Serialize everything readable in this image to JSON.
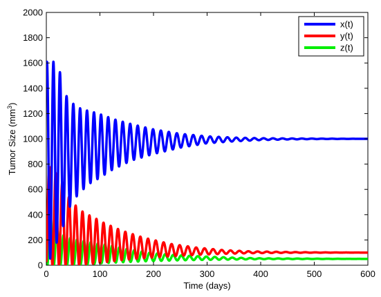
{
  "chart_data": {
    "type": "line",
    "title": "",
    "xlabel": "Time (days)",
    "ylabel": "Tumor Size (mm",
    "ylabel_sup": "3",
    "ylabel_close": ")",
    "xlim": [
      0,
      600
    ],
    "ylim": [
      0,
      2000
    ],
    "xticks": [
      0,
      100,
      200,
      300,
      400,
      500,
      600
    ],
    "yticks": [
      0,
      200,
      400,
      600,
      800,
      1000,
      1200,
      1400,
      1600,
      1800,
      2000
    ],
    "grid": false,
    "legend": "top-right",
    "series": [
      {
        "name": "x(t)",
        "color": "#0000ff",
        "peaks": [
          [
            20,
            1610
          ],
          [
            38,
            1335
          ],
          [
            55,
            1255
          ],
          [
            70,
            1230
          ],
          [
            85,
            1215
          ],
          [
            100,
            1195
          ],
          [
            130,
            1150
          ],
          [
            160,
            1115
          ],
          [
            200,
            1075
          ],
          [
            250,
            1040
          ],
          [
            300,
            1020
          ],
          [
            350,
            1010
          ],
          [
            400,
            1005
          ],
          [
            450,
            1003
          ],
          [
            500,
            1002
          ],
          [
            600,
            1000
          ]
        ],
        "troughs": [
          [
            5,
            30
          ],
          [
            30,
            290
          ],
          [
            47,
            500
          ],
          [
            62,
            570
          ],
          [
            78,
            640
          ],
          [
            95,
            680
          ],
          [
            125,
            760
          ],
          [
            160,
            830
          ],
          [
            200,
            880
          ],
          [
            250,
            930
          ],
          [
            300,
            965
          ],
          [
            350,
            980
          ],
          [
            400,
            990
          ],
          [
            450,
            995
          ],
          [
            500,
            998
          ],
          [
            600,
            1000
          ]
        ]
      },
      {
        "name": "y(t)",
        "color": "#ff0000",
        "peaks": [
          [
            0,
            800
          ],
          [
            25,
            700
          ],
          [
            42,
            540
          ],
          [
            57,
            460
          ],
          [
            72,
            410
          ],
          [
            88,
            380
          ],
          [
            105,
            340
          ],
          [
            140,
            275
          ],
          [
            180,
            220
          ],
          [
            230,
            170
          ],
          [
            280,
            140
          ],
          [
            330,
            120
          ],
          [
            380,
            110
          ],
          [
            450,
            105
          ],
          [
            500,
            102
          ],
          [
            600,
            100
          ]
        ],
        "troughs": [
          [
            12,
            0
          ],
          [
            33,
            0
          ],
          [
            50,
            2
          ],
          [
            65,
            5
          ],
          [
            80,
            10
          ],
          [
            100,
            18
          ],
          [
            140,
            40
          ],
          [
            180,
            55
          ],
          [
            230,
            70
          ],
          [
            280,
            82
          ],
          [
            330,
            90
          ],
          [
            380,
            95
          ],
          [
            450,
            98
          ],
          [
            500,
            99
          ],
          [
            600,
            100
          ]
        ]
      },
      {
        "name": "z(t)",
        "color": "#00ee00",
        "peaks": [
          [
            0,
            450
          ],
          [
            28,
            245
          ],
          [
            45,
            215
          ],
          [
            60,
            200
          ],
          [
            75,
            190
          ],
          [
            92,
            175
          ],
          [
            110,
            165
          ],
          [
            150,
            130
          ],
          [
            190,
            100
          ],
          [
            240,
            80
          ],
          [
            290,
            70
          ],
          [
            350,
            60
          ],
          [
            400,
            55
          ],
          [
            500,
            52
          ],
          [
            600,
            50
          ]
        ],
        "troughs": [
          [
            14,
            0
          ],
          [
            36,
            0
          ],
          [
            52,
            2
          ],
          [
            68,
            5
          ],
          [
            84,
            10
          ],
          [
            100,
            15
          ],
          [
            150,
            25
          ],
          [
            190,
            32
          ],
          [
            240,
            38
          ],
          [
            290,
            42
          ],
          [
            350,
            45
          ],
          [
            400,
            48
          ],
          [
            500,
            49
          ],
          [
            600,
            50
          ]
        ]
      }
    ]
  }
}
